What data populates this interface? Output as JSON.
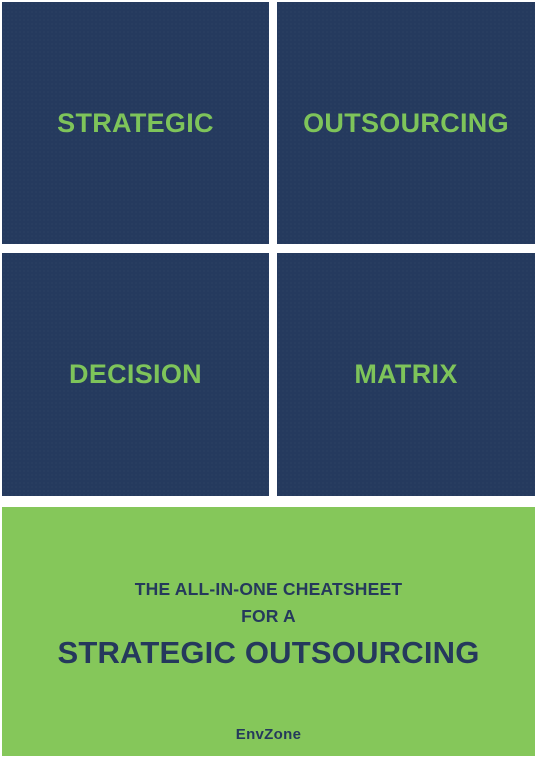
{
  "tiles": [
    {
      "text": "STRATEGIC"
    },
    {
      "text": "OUTSOURCING"
    },
    {
      "text": "DECISION"
    },
    {
      "text": "MATRIX"
    }
  ],
  "banner": {
    "line1": "THE ALL-IN-ONE CHEATSHEET",
    "line2": "FOR A",
    "headline": "STRATEGIC OUTSOURCING",
    "logo": "EnvZone"
  },
  "colors": {
    "tile_background": "#253a5e",
    "tile_text": "#7ec45a",
    "banner_background": "#85c75a",
    "banner_text": "#25395c"
  }
}
